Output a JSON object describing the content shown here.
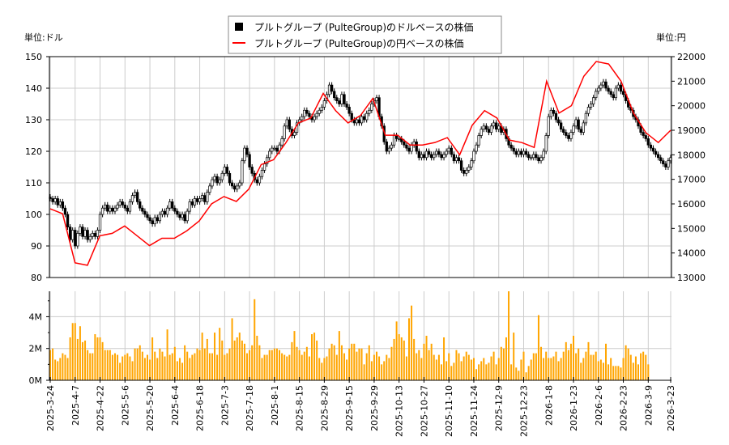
{
  "chart_data": [
    {
      "type": "candlestick+line",
      "legend": {
        "placement": "top-center",
        "entries": [
          "プルトグループ (PulteGroup)のドルベースの株価",
          "プルトグループ (PulteGroup)の円ベースの株価"
        ]
      },
      "left_unit_label": "単位:ドル",
      "right_unit_label": "単位:円",
      "ylim_left": [
        80,
        150
      ],
      "ylim_right": [
        13000,
        22000
      ],
      "yticks_left": [
        "80",
        "90",
        "100",
        "110",
        "120",
        "130",
        "140",
        "150"
      ],
      "yticks_right": [
        "13000",
        "14000",
        "15000",
        "16000",
        "17000",
        "18000",
        "19000",
        "20000",
        "21000",
        "22000"
      ],
      "grid": true,
      "colors": {
        "candle": "#000000",
        "yen_line": "#ff0000",
        "volume": "#ffa500"
      },
      "usd_close": [
        105,
        104,
        105,
        103,
        104,
        102,
        100,
        96,
        92,
        95,
        90,
        94,
        96,
        93,
        95,
        92,
        93,
        94,
        93,
        95,
        100,
        102,
        103,
        101,
        102,
        101,
        102,
        103,
        104,
        103,
        102,
        101,
        104,
        106,
        107,
        104,
        102,
        101,
        100,
        99,
        98,
        97,
        99,
        98,
        100,
        101,
        100,
        102,
        104,
        102,
        101,
        100,
        99,
        100,
        98,
        101,
        104,
        103,
        105,
        104,
        105,
        106,
        104,
        107,
        109,
        111,
        112,
        110,
        111,
        113,
        115,
        113,
        110,
        109,
        108,
        109,
        110,
        117,
        121,
        119,
        115,
        113,
        111,
        110,
        112,
        114,
        116,
        118,
        120,
        121,
        121,
        120,
        122,
        124,
        128,
        130,
        127,
        125,
        126,
        129,
        130,
        131,
        133,
        132,
        131,
        130,
        131,
        132,
        133,
        134,
        136,
        138,
        141,
        139,
        137,
        136,
        135,
        138,
        135,
        134,
        132,
        130,
        129,
        130,
        129,
        131,
        130,
        132,
        133,
        135,
        136,
        137,
        131,
        128,
        123,
        120,
        121,
        122,
        125,
        124,
        124,
        123,
        122,
        121,
        120,
        122,
        123,
        120,
        118,
        119,
        118,
        120,
        119,
        118,
        119,
        120,
        119,
        118,
        119,
        120,
        121,
        119,
        117,
        118,
        117,
        114,
        113,
        114,
        115,
        117,
        120,
        122,
        125,
        127,
        128,
        127,
        126,
        128,
        129,
        127,
        128,
        126,
        127,
        124,
        122,
        121,
        120,
        119,
        120,
        119,
        120,
        119,
        118,
        118,
        119,
        118,
        117,
        118,
        120,
        125,
        131,
        133,
        132,
        130,
        129,
        127,
        126,
        125,
        124,
        126,
        128,
        130,
        127,
        126,
        129,
        132,
        134,
        135,
        137,
        139,
        140,
        141,
        142,
        140,
        139,
        138,
        137,
        140,
        141,
        139,
        138,
        136,
        134,
        133,
        131,
        130,
        128,
        126,
        125,
        124,
        122,
        121,
        120,
        119,
        118,
        117,
        116,
        115,
        117,
        118
      ],
      "jpy_line": [
        15800,
        15600,
        13600,
        13500,
        14700,
        14800,
        15100,
        14700,
        14300,
        14600,
        14600,
        14900,
        15300,
        16000,
        16300,
        16100,
        16600,
        17600,
        17800,
        18500,
        19300,
        19500,
        20500,
        19800,
        19300,
        19600,
        20300,
        18800,
        18800,
        18400,
        18400,
        18500,
        18700,
        18000,
        19200,
        19800,
        19500,
        18600,
        18500,
        18300,
        21000,
        19700,
        20000,
        21200,
        21800,
        21700,
        21000,
        19700,
        18900,
        18500,
        19000
      ],
      "volume_ylabel_ticks": [
        "0M",
        "2M",
        "4M"
      ],
      "volume_ylim_millions": [
        0,
        5.6
      ],
      "volume_millions": [
        1.9,
        2.0,
        1.3,
        1.2,
        1.4,
        1.7,
        1.6,
        1.4,
        2.7,
        3.6,
        3.6,
        2.6,
        3.4,
        2.4,
        2.5,
        1.9,
        1.7,
        1.7,
        2.9,
        2.7,
        2.7,
        2.4,
        1.9,
        1.9,
        1.9,
        1.6,
        1.7,
        1.6,
        1.1,
        1.5,
        1.6,
        1.7,
        1.5,
        1.2,
        2.0,
        2.0,
        2.2,
        1.8,
        1.4,
        1.6,
        1.3,
        2.7,
        1.8,
        1.4,
        2.0,
        1.8,
        1.5,
        3.2,
        1.6,
        1.7,
        2.1,
        1.2,
        1.4,
        1.1,
        2.2,
        1.8,
        1.4,
        1.6,
        1.7,
        2.0,
        1.9,
        3.0,
        2.0,
        2.6,
        1.7,
        1.7,
        3.0,
        1.6,
        3.3,
        2.5,
        1.6,
        1.7,
        2.0,
        3.9,
        2.5,
        2.7,
        3.0,
        2.5,
        2.3,
        1.7,
        1.9,
        2.2,
        5.1,
        2.8,
        2.2,
        1.4,
        1.6,
        1.6,
        1.9,
        1.9,
        2.0,
        2.0,
        1.9,
        1.7,
        1.6,
        1.5,
        1.6,
        2.4,
        3.1,
        2.1,
        1.9,
        1.6,
        1.8,
        2.1,
        1.5,
        2.9,
        3.0,
        2.5,
        1.4,
        1.1,
        1.4,
        1.5,
        2.0,
        2.3,
        2.2,
        1.6,
        3.1,
        2.2,
        1.7,
        1.3,
        2.0,
        2.3,
        2.3,
        1.8,
        2.0,
        2.0,
        1.0,
        1.7,
        2.2,
        1.2,
        1.6,
        1.8,
        1.5,
        1.0,
        1.2,
        1.6,
        1.4,
        2.1,
        2.6,
        3.7,
        2.9,
        2.7,
        2.5,
        1.5,
        3.9,
        4.7,
        2.6,
        1.7,
        1.9,
        1.4,
        2.3,
        2.8,
        1.9,
        2.3,
        1.6,
        1.3,
        1.6,
        1.0,
        2.7,
        1.2,
        1.7,
        0.9,
        1.1,
        1.9,
        1.7,
        1.2,
        1.5,
        1.8,
        1.6,
        1.3,
        1.4,
        0.7,
        1.0,
        1.2,
        1.4,
        1.0,
        1.1,
        1.5,
        1.8,
        1.0,
        1.4,
        2.1,
        2.0,
        2.7,
        5.6,
        1.0,
        3.0,
        0.8,
        0.6,
        1.3,
        1.8,
        0.5,
        0.9,
        1.3,
        1.7,
        1.7,
        4.1,
        2.1,
        1.4,
        1.8,
        1.4,
        1.4,
        1.5,
        1.8,
        1.2,
        1.4,
        1.8,
        2.4,
        1.9,
        2.3,
        2.8,
        1.7,
        2.0,
        1.1,
        1.4,
        1.8,
        2.4,
        1.6,
        1.6,
        1.8,
        1.2,
        1.3,
        1.1,
        2.3,
        1.0,
        1.4,
        0.9,
        0.9,
        0.9,
        0.8,
        1.4,
        2.2,
        2.0,
        1.6,
        1.1,
        1.5,
        1.0,
        1.7,
        1.8,
        1.6,
        1.0
      ],
      "x_tick_labels": [
        "2025-3-24",
        "2025-4-7",
        "2025-4-22",
        "2025-5-6",
        "2025-5-20",
        "2025-6-4",
        "2025-6-18",
        "2025-7-3",
        "2025-7-18",
        "2025-8-1",
        "2025-8-15",
        "2025-8-29",
        "2025-9-15",
        "2025-9-29",
        "2025-10-13",
        "2025-10-27",
        "2025-11-10",
        "2025-11-24",
        "2025-12-9",
        "2025-12-23",
        "2026-1-8",
        "2026-1-23",
        "2026-2-6",
        "2026-2-23",
        "2026-3-9",
        "2026-3-23"
      ]
    }
  ]
}
